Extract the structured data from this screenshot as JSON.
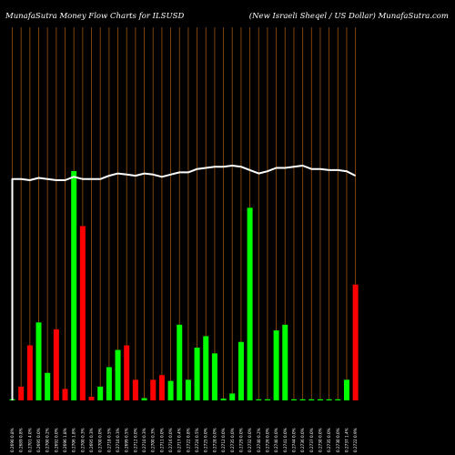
{
  "header": {
    "left_title": "MunafaSutra  Money Flow  Charts for ILSUSD",
    "right_title": "(New  Israeli  Sheqel / US Dollar) MunafaSutra.com"
  },
  "colors": {
    "background": "#000000",
    "up": "#00ff00",
    "down": "#ff0000",
    "gridline": "#8b4a0f",
    "price_line": "#ffffff"
  },
  "chart_data": {
    "type": "bar",
    "grid": true,
    "categories": [
      "0.2690 0.8%",
      "0.2689 0.8%",
      "0.2701 4.0%",
      "0.2695 0.0%",
      "0.2700 0.2%",
      "0.2692 0.0%",
      "0.2696 1.8%",
      "0.2706 1.8%",
      "0.2700 0.3%",
      "0.2695 0.3%",
      "0.2700 0.0%",
      "0.2718 0.5%",
      "0.2710 0.3%",
      "0.2699 0.5%",
      "0.2712 0.0%",
      "0.2710 0.3%",
      "0.2700 0.3%",
      "0.2711 0.0%",
      "0.2716 0.0%",
      "0.2717 0.4%",
      "0.2722 0.8%",
      "0.2724 0.5%",
      "0.2725 0.0%",
      "0.2728 0.0%",
      "0.2712 0.0%",
      "0.2735 0.0%",
      "0.2729 0.0%",
      "0.2732 0.0%",
      "0.2740 0.2%",
      "0.2726 0.0%",
      "0.2740 0.0%",
      "0.2741 0.0%",
      "0.2744 0.0%",
      "0.2736 0.0%",
      "0.2737 0.0%",
      "0.2730 0.0%",
      "0.2735 0.0%",
      "0.2730 0.0%",
      "0.2737 1.4%",
      "0.2722 0.9%"
    ],
    "volumes": [
      0.5,
      6,
      24,
      34,
      12,
      31,
      5,
      100,
      76,
      1.6,
      6,
      14.5,
      22,
      24,
      9,
      1,
      9,
      11,
      8.5,
      33,
      9,
      23,
      28,
      20.5,
      0.8,
      3,
      25.5,
      84,
      0.4,
      0.4,
      30.5,
      33,
      0.4,
      0.4,
      0.4,
      0.4,
      0.4,
      0.4,
      9,
      50.5
    ],
    "directions": [
      "up",
      "down",
      "down",
      "up",
      "up",
      "down",
      "down",
      "up",
      "down",
      "down",
      "up",
      "up",
      "up",
      "down",
      "down",
      "up",
      "down",
      "down",
      "up",
      "up",
      "up",
      "up",
      "up",
      "up",
      "up",
      "up",
      "up",
      "up",
      "up",
      "up",
      "up",
      "up",
      "up",
      "up",
      "up",
      "up",
      "up",
      "up",
      "up",
      "down"
    ],
    "price_line": [
      0.269,
      0.269,
      0.2689,
      0.2691,
      0.269,
      0.2689,
      0.2689,
      0.2692,
      0.269,
      0.269,
      0.269,
      0.2693,
      0.2695,
      0.2694,
      0.2693,
      0.2695,
      0.2694,
      0.2692,
      0.2694,
      0.2696,
      0.2696,
      0.2699,
      0.27,
      0.2701,
      0.2701,
      0.2702,
      0.2701,
      0.2698,
      0.2695,
      0.2697,
      0.27,
      0.27,
      0.2701,
      0.2702,
      0.2699,
      0.2699,
      0.2698,
      0.2698,
      0.2697,
      0.2693
    ]
  }
}
